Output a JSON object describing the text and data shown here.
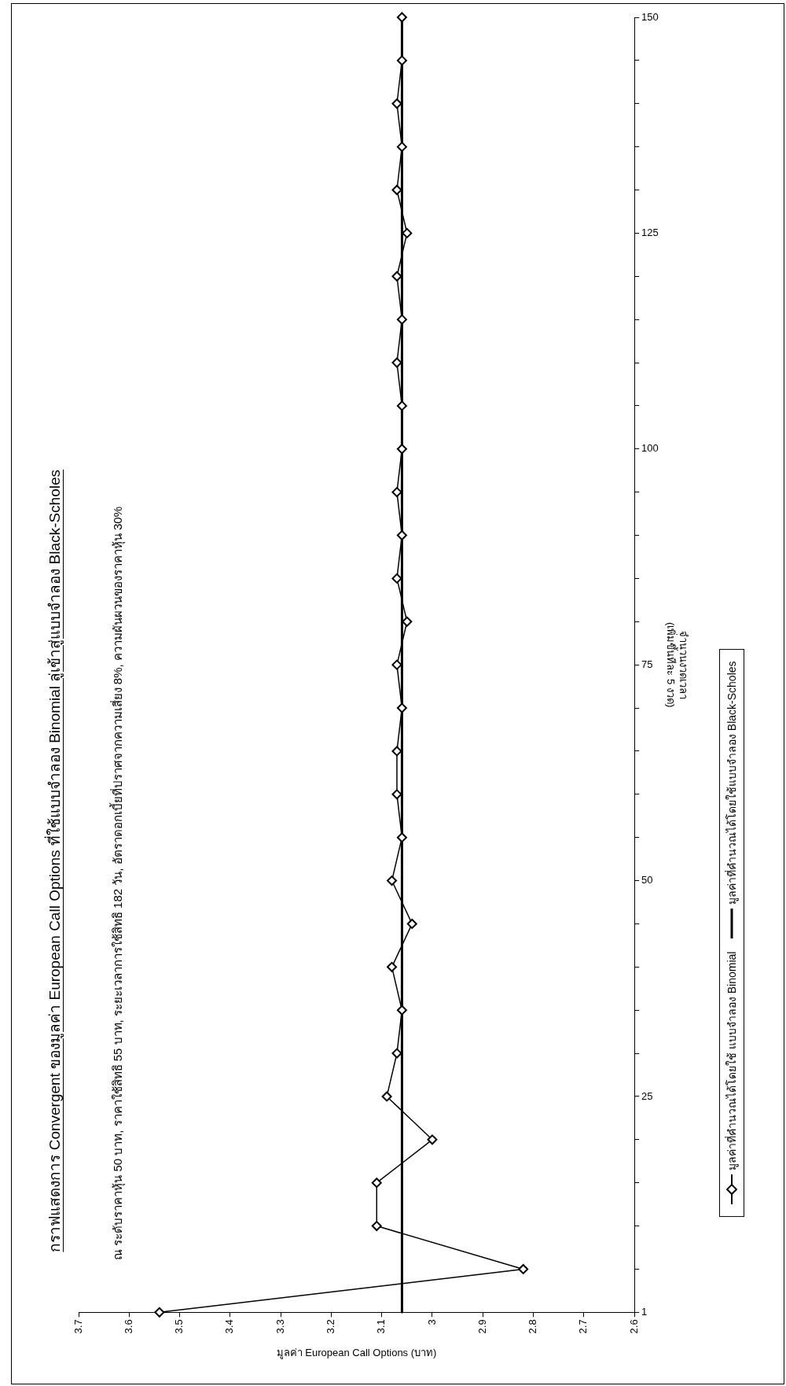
{
  "chart_data": {
    "type": "line",
    "orientation": "horizontal",
    "title": "กราฟแสดงการ Convergent ของมูลค่า European Call Options ที่ใช้แบบจำลอง Binomial ลู่เข้าสู่แบบจำลอง Black-Scholes",
    "subtitle": "ณ ระดับราคาหุ้น 50 บาท, ราคาใช้สิทธิ 55 บาท, ระยะเวลาการใช้สิทธิ 182 วัน, อัตราดอกเบี้ยที่ปราศจากความเสี่ยง 8%, ความผันผวนของราคาหุ้น 30%",
    "ylabel": "จำนวนงวดเวลา\n(เพิ่มขึ้นทีละ 5 งวด)",
    "xlabel": "มูลค่า European Call Options (บาท)",
    "categories": [
      "150",
      null,
      null,
      null,
      null,
      "125",
      null,
      null,
      null,
      null,
      "100",
      null,
      null,
      null,
      null,
      "75",
      null,
      null,
      null,
      null,
      "50",
      null,
      null,
      null,
      null,
      "25",
      null,
      null,
      null,
      null,
      "1"
    ],
    "series": [
      {
        "name": "มูลค่าที่คำนวณได้โดยใช้ แบบจำลอง Binomial",
        "color": "#000000",
        "values": [
          3.06,
          3.06,
          3.07,
          3.06,
          3.07,
          3.05,
          3.07,
          3.06,
          3.07,
          3.06,
          3.06,
          3.07,
          3.06,
          3.07,
          3.05,
          3.07,
          3.06,
          3.07,
          3.07,
          3.06,
          3.08,
          3.04,
          3.08,
          3.06,
          3.07,
          3.09,
          3.0,
          3.11,
          3.11,
          2.82,
          3.54
        ]
      },
      {
        "name": "มูลค่าที่คำนวณได้โดยใช้แบบจำลอง Black-Scholes",
        "color": "#000000",
        "marker": "none",
        "values": [
          3.06,
          3.06,
          3.06,
          3.06,
          3.06,
          3.06,
          3.06,
          3.06,
          3.06,
          3.06,
          3.06,
          3.06,
          3.06,
          3.06,
          3.06,
          3.06,
          3.06,
          3.06,
          3.06,
          3.06,
          3.06,
          3.06,
          3.06,
          3.06,
          3.06,
          3.06,
          3.06,
          3.06,
          3.06,
          3.06,
          3.06
        ]
      }
    ],
    "xlim": [
      3.7,
      2.6
    ],
    "xticks": [
      3.7,
      3.6,
      3.5,
      3.4,
      3.3,
      3.2,
      3.1,
      3,
      2.9,
      2.8,
      2.7,
      2.6
    ],
    "marker": "diamond",
    "legend": "right"
  }
}
